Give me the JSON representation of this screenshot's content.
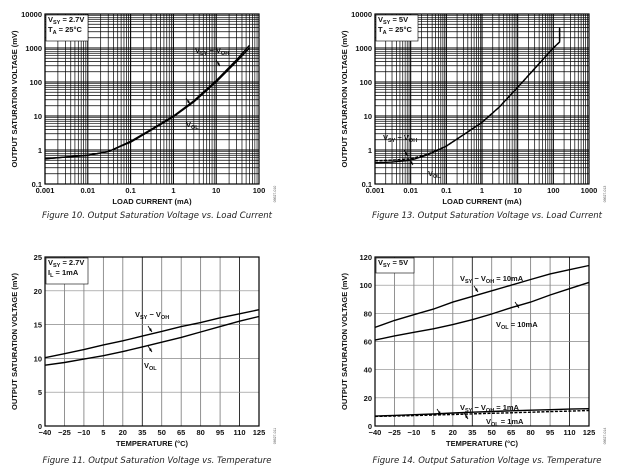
{
  "chart_data": [
    {
      "type": "line",
      "title": "Figure 10. Output Saturation Voltage vs. Load Current",
      "xlabel": "LOAD CURRENT (mA)",
      "ylabel": "OUTPUT SATURATION VOLTAGE (mV)",
      "xscale": "log",
      "yscale": "log",
      "xlim": [
        0.001,
        100
      ],
      "ylim": [
        0.1,
        10000
      ],
      "xticks": [
        "0.001",
        "0.01",
        "0.1",
        "1",
        "10",
        "100"
      ],
      "yticks": [
        "0.1",
        "1",
        "10",
        "100",
        "1000",
        "10000"
      ],
      "grid": true,
      "conditions": [
        {
          "main": "V",
          "sub": "SY",
          "rest": " = 2.7V"
        },
        {
          "main": "T",
          "sub": "A",
          "rest": " = 25°C"
        }
      ],
      "doc_id": "06627-010",
      "series": [
        {
          "name": "VSY − VOH",
          "label_main": "V",
          "label_sub1": "SY",
          "label_mid": " − V",
          "label_sub2": "OH",
          "dash": false,
          "x": [
            0.001,
            0.003,
            0.01,
            0.03,
            0.1,
            0.3,
            1,
            3,
            10,
            30,
            60
          ],
          "y": [
            0.55,
            0.62,
            0.7,
            0.9,
            1.8,
            4,
            10,
            28,
            110,
            450,
            1200
          ]
        },
        {
          "name": "VOL",
          "label_main": "V",
          "label_sub1": "OL",
          "label_mid": "",
          "label_sub2": "",
          "dash": false,
          "x": [
            0.001,
            0.003,
            0.01,
            0.03,
            0.1,
            0.3,
            1,
            3,
            10,
            30,
            60
          ],
          "y": [
            0.55,
            0.62,
            0.7,
            0.9,
            1.7,
            3.8,
            9.5,
            26,
            100,
            400,
            1000
          ]
        }
      ]
    },
    {
      "type": "line",
      "title": "Figure 13. Output Saturation Voltage vs. Load Current",
      "xlabel": "LOAD CURRENT (mA)",
      "ylabel": "OUTPUT SATURATION VOLTAGE (mV)",
      "xscale": "log",
      "yscale": "log",
      "xlim": [
        0.001,
        1000
      ],
      "ylim": [
        0.1,
        10000
      ],
      "xticks": [
        "0.001",
        "0.01",
        "0.1",
        "1",
        "10",
        "100",
        "1000"
      ],
      "yticks": [
        "0.1",
        "1",
        "10",
        "100",
        "1000",
        "10000"
      ],
      "grid": true,
      "conditions": [
        {
          "main": "V",
          "sub": "SY",
          "rest": " = 5V"
        },
        {
          "main": "T",
          "sub": "A",
          "rest": " = 25°C"
        }
      ],
      "doc_id": "06627-013",
      "series": [
        {
          "name": "VSY − VOH",
          "label_main": "V",
          "label_sub1": "SY",
          "label_mid": " − V",
          "label_sub2": "OH",
          "dash": true,
          "x": [
            0.001,
            0.003,
            0.01,
            0.03,
            0.1,
            0.3,
            1,
            3,
            10,
            30,
            100,
            150,
            150
          ],
          "y": [
            0.48,
            0.5,
            0.55,
            0.75,
            1.3,
            2.8,
            6.5,
            18,
            70,
            250,
            1000,
            1500,
            4000
          ]
        },
        {
          "name": "VOL",
          "label_main": "V",
          "label_sub1": "OL",
          "label_mid": "",
          "label_sub2": "",
          "dash": false,
          "x": [
            0.001,
            0.003,
            0.01,
            0.03,
            0.1,
            0.3,
            1,
            3,
            10,
            30,
            100,
            150,
            150
          ],
          "y": [
            0.42,
            0.44,
            0.5,
            0.72,
            1.3,
            2.8,
            6.5,
            18,
            70,
            250,
            1000,
            1500,
            4000
          ]
        }
      ]
    },
    {
      "type": "line",
      "title": "Figure 11. Output Saturation Voltage vs. Temperature",
      "xlabel": "TEMPERATURE (°C)",
      "ylabel": "OUTPUT SATURATION VOLTAGE (mV)",
      "xscale": "linear",
      "yscale": "linear",
      "xlim": [
        -40,
        125
      ],
      "ylim": [
        0,
        25
      ],
      "xticks": [
        "−40",
        "−25",
        "−10",
        "5",
        "20",
        "35",
        "50",
        "65",
        "80",
        "95",
        "110",
        "125"
      ],
      "yticks": [
        "0",
        "5",
        "10",
        "15",
        "20",
        "25"
      ],
      "grid": true,
      "conditions": [
        {
          "main": "V",
          "sub": "SY",
          "rest": " = 2.7V"
        },
        {
          "main": "I",
          "sub": "L",
          "rest": " = 1mA"
        }
      ],
      "doc_id": "06627-011",
      "series": [
        {
          "name": "VSY − VOH",
          "label_main": "V",
          "label_sub1": "SY",
          "label_mid": " − V",
          "label_sub2": "OH",
          "dash": false,
          "x": [
            -40,
            -25,
            -10,
            5,
            20,
            35,
            50,
            65,
            80,
            95,
            110,
            125
          ],
          "y": [
            10.1,
            10.7,
            11.3,
            12.0,
            12.6,
            13.3,
            14.0,
            14.7,
            15.3,
            16.0,
            16.6,
            17.2
          ]
        },
        {
          "name": "VOL",
          "label_main": "V",
          "label_sub1": "OL",
          "label_mid": "",
          "label_sub2": "",
          "dash": false,
          "x": [
            -40,
            -25,
            -10,
            5,
            20,
            35,
            50,
            65,
            80,
            95,
            110,
            125
          ],
          "y": [
            9.0,
            9.4,
            9.9,
            10.4,
            11.0,
            11.7,
            12.4,
            13.1,
            13.9,
            14.7,
            15.5,
            16.2
          ]
        }
      ]
    },
    {
      "type": "line",
      "title": "Figure 14. Output Saturation Voltage vs. Temperature",
      "xlabel": "TEMPERATURE (°C)",
      "ylabel": "OUTPUT SATURATION VOLTAGE (mV)",
      "xscale": "linear",
      "yscale": "linear",
      "xlim": [
        -40,
        125
      ],
      "ylim": [
        0,
        120
      ],
      "xticks": [
        "−40",
        "−25",
        "−10",
        "5",
        "20",
        "35",
        "50",
        "65",
        "80",
        "95",
        "110",
        "125"
      ],
      "yticks": [
        "0",
        "20",
        "40",
        "60",
        "80",
        "100",
        "120"
      ],
      "grid": true,
      "conditions": [
        {
          "main": "V",
          "sub": "SY",
          "rest": " = 5V"
        }
      ],
      "doc_id": "06627-014",
      "series": [
        {
          "name": "VSY − VOH = 10mA",
          "label_main": "V",
          "label_sub1": "SY",
          "label_mid": " − V",
          "label_sub2": "OH",
          "label_rest": " = 10mA",
          "dash": false,
          "x": [
            -40,
            -25,
            -10,
            5,
            20,
            35,
            50,
            65,
            80,
            95,
            110,
            125
          ],
          "y": [
            70,
            75,
            79,
            83,
            88,
            92,
            96,
            100,
            104,
            108,
            111,
            114
          ]
        },
        {
          "name": "VOL = 10mA",
          "label_main": "V",
          "label_sub1": "OL",
          "label_mid": "",
          "label_sub2": "",
          "label_rest": " = 10mA",
          "dash": false,
          "x": [
            -40,
            -25,
            -10,
            5,
            20,
            35,
            50,
            65,
            80,
            95,
            110,
            125
          ],
          "y": [
            61,
            64,
            66.5,
            69,
            72,
            75.5,
            79.5,
            84,
            88,
            93,
            97.5,
            102
          ]
        },
        {
          "name": "VSY − VOH = 1mA",
          "label_main": "V",
          "label_sub1": "SY",
          "label_mid": " − V",
          "label_sub2": "OH",
          "label_rest": " = 1mA",
          "dash": false,
          "x": [
            -40,
            -25,
            -10,
            5,
            20,
            35,
            50,
            65,
            80,
            95,
            110,
            125
          ],
          "y": [
            7,
            7.5,
            8,
            8.5,
            9.2,
            9.8,
            10.3,
            10.8,
            11.2,
            11.6,
            12.0,
            12.3
          ]
        },
        {
          "name": "VOL = 1mA",
          "label_main": "V",
          "label_sub1": "OL",
          "label_mid": "",
          "label_sub2": "",
          "label_rest": " = 1mA",
          "dash": true,
          "x": [
            -40,
            -25,
            -10,
            5,
            20,
            35,
            50,
            65,
            80,
            95,
            110,
            125
          ],
          "y": [
            6.8,
            7.1,
            7.4,
            7.8,
            8.2,
            8.6,
            9.0,
            9.4,
            9.8,
            10.2,
            10.6,
            11.0
          ]
        }
      ]
    }
  ]
}
